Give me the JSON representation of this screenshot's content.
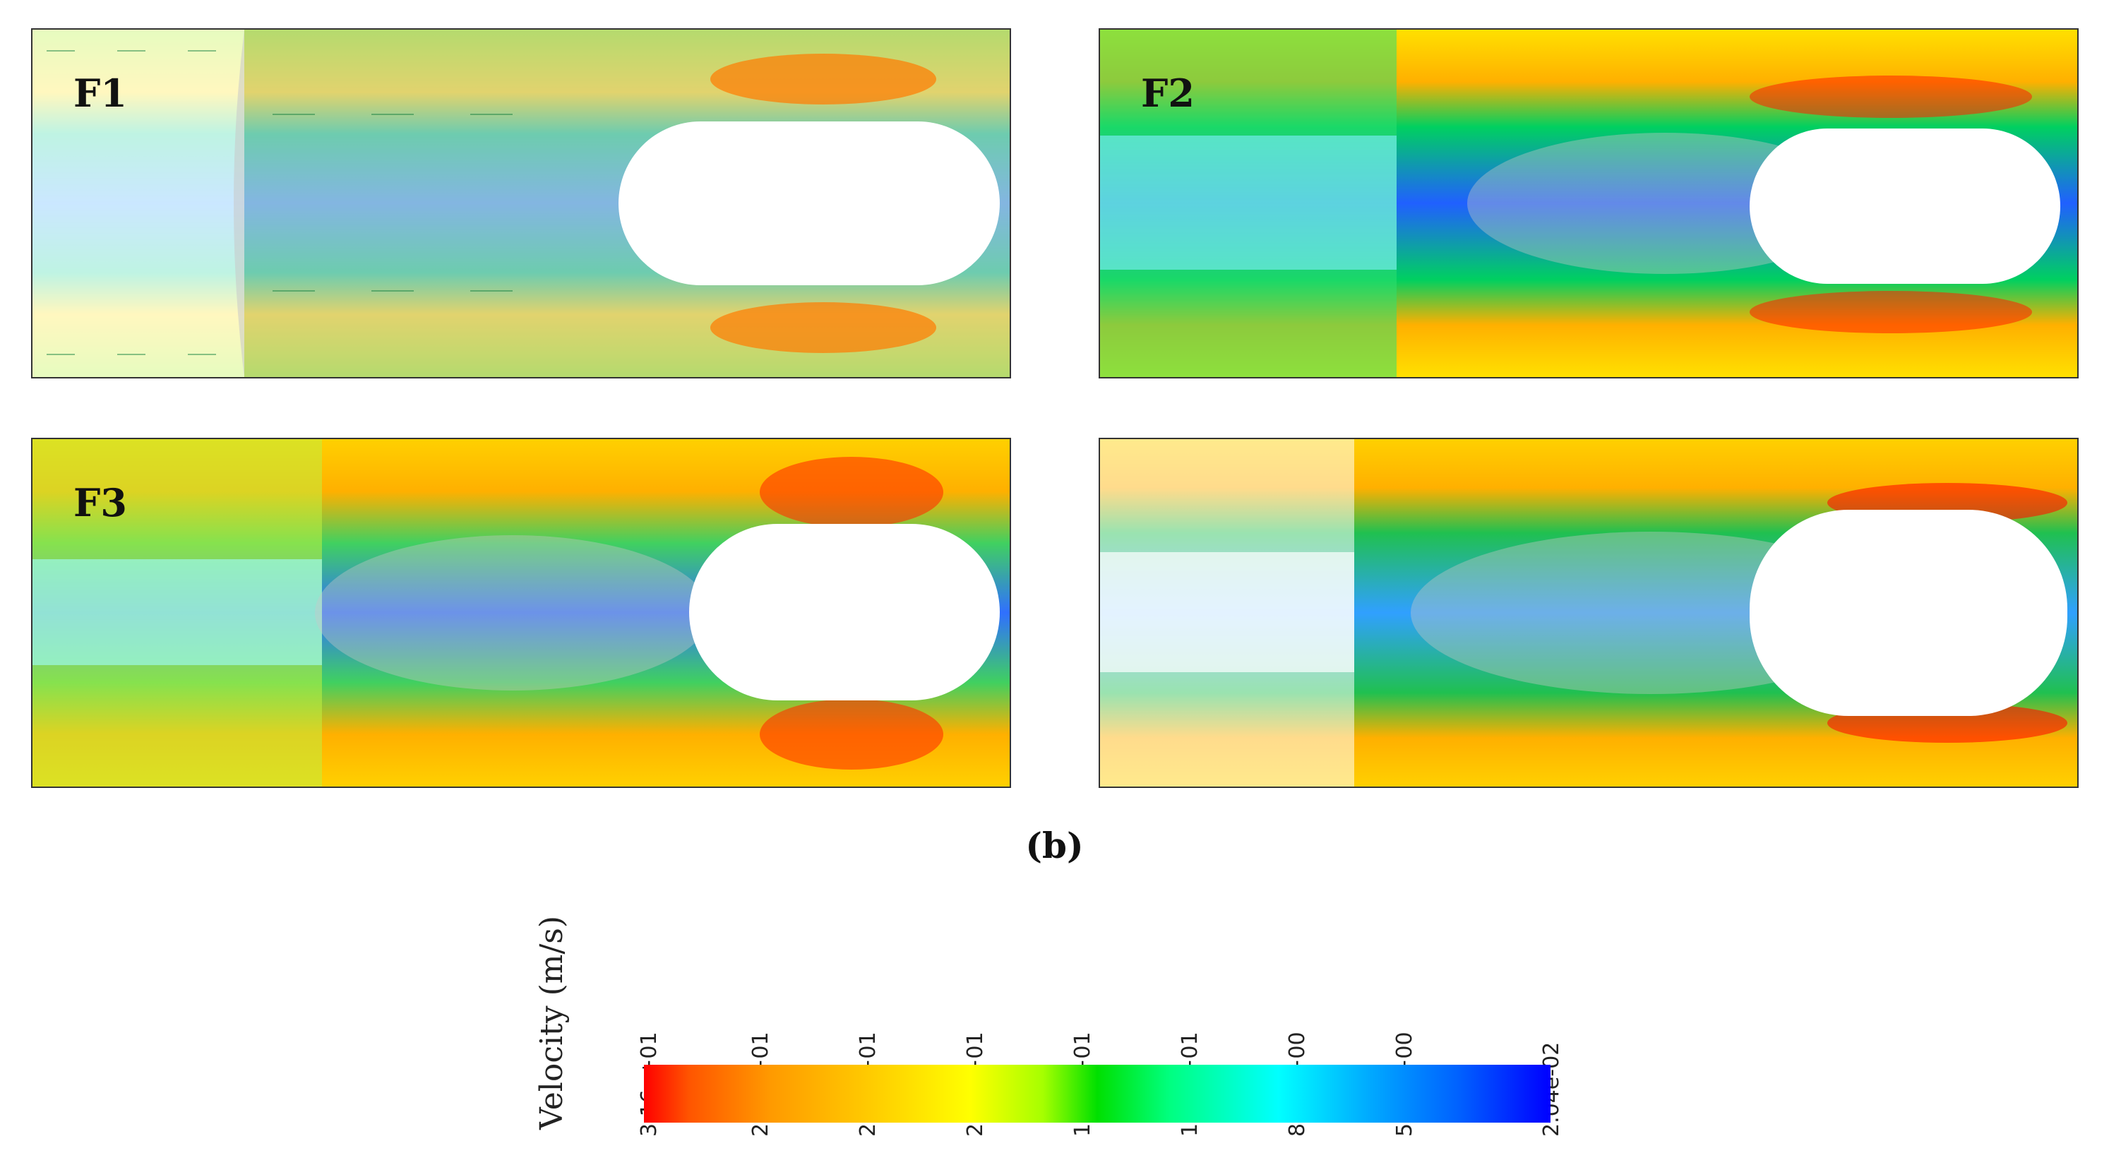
{
  "panels": [
    {
      "label": "F1"
    },
    {
      "label": "F2"
    },
    {
      "label": "F3"
    },
    {
      "label": ""
    }
  ],
  "caption": "(b)",
  "legend": {
    "title": "Velocity (m/s)",
    "ticks": [
      "3.16e+01",
      "2.78e+01",
      "2.40e+01",
      "2.02e+01",
      "1.64e+01",
      "1.26e+01",
      "8.85e+00",
      "5.07e+00",
      "2.04e-02"
    ],
    "colors": [
      "#ff0000",
      "#ff9a00",
      "#ffff00",
      "#00e000",
      "#00ffff",
      "#0000ff"
    ]
  }
}
